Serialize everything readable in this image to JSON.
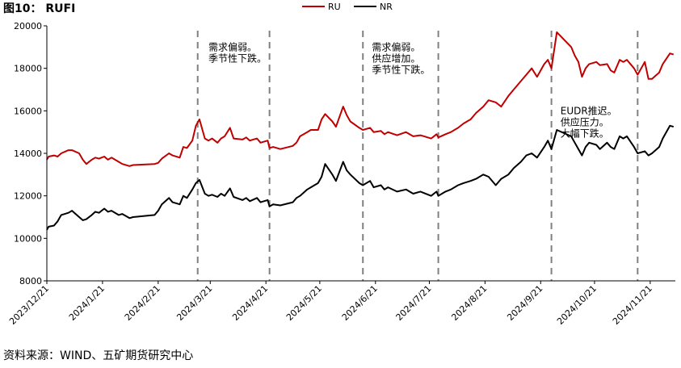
{
  "figure": {
    "title": "图10： RUFI",
    "source": "资料来源：WIND、五矿期货研究中心"
  },
  "chart_data": {
    "type": "line",
    "xlabel": "",
    "ylabel": "",
    "ylim": [
      8000,
      20000
    ],
    "yticks": [
      8000,
      10000,
      12000,
      14000,
      16000,
      18000,
      20000
    ],
    "xlim": [
      "2023-12-21",
      "2024-12-05"
    ],
    "xticks": [
      "2023/12/21",
      "2024/1/21",
      "2024/2/21",
      "2024/3/21",
      "2024/4/21",
      "2024/5/21",
      "2024/6/21",
      "2024/7/21",
      "2024/8/21",
      "2024/9/21",
      "2024/10/21",
      "2024/11/21"
    ],
    "grid": false,
    "legend_position": "top-center",
    "colors": {
      "RU": "#c00000",
      "NR": "#000000",
      "dashed_line": "#808080"
    },
    "dashed_lines": [
      "2024-03-14",
      "2024-04-23",
      "2024-06-14",
      "2024-07-26",
      "2024-09-27",
      "2024-11-14"
    ],
    "annotations": [
      {
        "lines": [
          "需求偏弱。",
          "季节性下跌。"
        ],
        "x": "2024-03-20",
        "y": 18850
      },
      {
        "lines": [
          "需求偏弱。",
          "供应增加。",
          "季节性下跌。"
        ],
        "x": "2024-06-19",
        "y": 18850
      },
      {
        "lines": [
          "EUDR推迟。",
          "供应压力。",
          "大幅下跌。"
        ],
        "x": "2024-10-02",
        "y": 15850
      }
    ],
    "series": [
      {
        "name": "RU",
        "points": [
          [
            "2023-12-21",
            13700
          ],
          [
            "2023-12-22",
            13850
          ],
          [
            "2023-12-25",
            13900
          ],
          [
            "2023-12-27",
            13850
          ],
          [
            "2023-12-29",
            14000
          ],
          [
            "2024-01-02",
            14150
          ],
          [
            "2024-01-04",
            14150
          ],
          [
            "2024-01-08",
            14000
          ],
          [
            "2024-01-10",
            13700
          ],
          [
            "2024-01-12",
            13500
          ],
          [
            "2024-01-15",
            13700
          ],
          [
            "2024-01-17",
            13800
          ],
          [
            "2024-01-19",
            13750
          ],
          [
            "2024-01-22",
            13850
          ],
          [
            "2024-01-24",
            13700
          ],
          [
            "2024-01-26",
            13800
          ],
          [
            "2024-01-30",
            13600
          ],
          [
            "2024-02-01",
            13500
          ],
          [
            "2024-02-05",
            13400
          ],
          [
            "2024-02-07",
            13450
          ],
          [
            "2024-02-19",
            13500
          ],
          [
            "2024-02-21",
            13550
          ],
          [
            "2024-02-23",
            13750
          ],
          [
            "2024-02-27",
            14000
          ],
          [
            "2024-02-29",
            13900
          ],
          [
            "2024-03-04",
            13800
          ],
          [
            "2024-03-06",
            14300
          ],
          [
            "2024-03-08",
            14250
          ],
          [
            "2024-03-11",
            14600
          ],
          [
            "2024-03-13",
            15300
          ],
          [
            "2024-03-15",
            15600
          ],
          [
            "2024-03-18",
            14700
          ],
          [
            "2024-03-20",
            14600
          ],
          [
            "2024-03-22",
            14700
          ],
          [
            "2024-03-25",
            14500
          ],
          [
            "2024-03-27",
            14700
          ],
          [
            "2024-03-29",
            14800
          ],
          [
            "2024-04-01",
            15200
          ],
          [
            "2024-04-03",
            14700
          ],
          [
            "2024-04-08",
            14650
          ],
          [
            "2024-04-10",
            14750
          ],
          [
            "2024-04-12",
            14600
          ],
          [
            "2024-04-16",
            14700
          ],
          [
            "2024-04-18",
            14500
          ],
          [
            "2024-04-22",
            14600
          ],
          [
            "2024-04-23",
            14250
          ],
          [
            "2024-04-25",
            14300
          ],
          [
            "2024-04-29",
            14200
          ],
          [
            "2024-05-06",
            14350
          ],
          [
            "2024-05-08",
            14500
          ],
          [
            "2024-05-10",
            14800
          ],
          [
            "2024-05-14",
            15000
          ],
          [
            "2024-05-16",
            15100
          ],
          [
            "2024-05-20",
            15100
          ],
          [
            "2024-05-22",
            15600
          ],
          [
            "2024-05-24",
            15850
          ],
          [
            "2024-05-28",
            15500
          ],
          [
            "2024-05-30",
            15250
          ],
          [
            "2024-06-03",
            16200
          ],
          [
            "2024-06-05",
            15800
          ],
          [
            "2024-06-07",
            15500
          ],
          [
            "2024-06-12",
            15200
          ],
          [
            "2024-06-14",
            15100
          ],
          [
            "2024-06-18",
            15200
          ],
          [
            "2024-06-20",
            15000
          ],
          [
            "2024-06-24",
            15050
          ],
          [
            "2024-06-26",
            14900
          ],
          [
            "2024-06-28",
            15000
          ],
          [
            "2024-07-03",
            14850
          ],
          [
            "2024-07-08",
            15000
          ],
          [
            "2024-07-12",
            14800
          ],
          [
            "2024-07-16",
            14850
          ],
          [
            "2024-07-22",
            14700
          ],
          [
            "2024-07-25",
            14900
          ],
          [
            "2024-07-26",
            14750
          ],
          [
            "2024-07-30",
            14900
          ],
          [
            "2024-08-02",
            15000
          ],
          [
            "2024-08-06",
            15200
          ],
          [
            "2024-08-09",
            15400
          ],
          [
            "2024-08-13",
            15600
          ],
          [
            "2024-08-16",
            15900
          ],
          [
            "2024-08-20",
            16200
          ],
          [
            "2024-08-23",
            16500
          ],
          [
            "2024-08-27",
            16400
          ],
          [
            "2024-08-30",
            16200
          ],
          [
            "2024-09-03",
            16700
          ],
          [
            "2024-09-06",
            17000
          ],
          [
            "2024-09-10",
            17400
          ],
          [
            "2024-09-13",
            17700
          ],
          [
            "2024-09-16",
            18000
          ],
          [
            "2024-09-19",
            17600
          ],
          [
            "2024-09-23",
            18200
          ],
          [
            "2024-09-25",
            18400
          ],
          [
            "2024-09-27",
            18000
          ],
          [
            "2024-09-30",
            19700
          ],
          [
            "2024-10-08",
            19000
          ],
          [
            "2024-10-10",
            18600
          ],
          [
            "2024-10-12",
            18300
          ],
          [
            "2024-10-14",
            17600
          ],
          [
            "2024-10-16",
            18000
          ],
          [
            "2024-10-18",
            18200
          ],
          [
            "2024-10-22",
            18300
          ],
          [
            "2024-10-24",
            18150
          ],
          [
            "2024-10-28",
            18200
          ],
          [
            "2024-10-30",
            17900
          ],
          [
            "2024-11-01",
            17800
          ],
          [
            "2024-11-04",
            18400
          ],
          [
            "2024-11-06",
            18300
          ],
          [
            "2024-11-08",
            18400
          ],
          [
            "2024-11-12",
            18000
          ],
          [
            "2024-11-14",
            17700
          ],
          [
            "2024-11-18",
            18300
          ],
          [
            "2024-11-20",
            17500
          ],
          [
            "2024-11-22",
            17500
          ],
          [
            "2024-11-26",
            17800
          ],
          [
            "2024-11-28",
            18200
          ],
          [
            "2024-12-02",
            18700
          ],
          [
            "2024-12-04",
            18650
          ]
        ]
      },
      {
        "name": "NR",
        "points": [
          [
            "2023-12-21",
            10400
          ],
          [
            "2023-12-22",
            10550
          ],
          [
            "2023-12-25",
            10600
          ],
          [
            "2023-12-27",
            10800
          ],
          [
            "2023-12-29",
            11100
          ],
          [
            "2024-01-02",
            11200
          ],
          [
            "2024-01-04",
            11300
          ],
          [
            "2024-01-08",
            11000
          ],
          [
            "2024-01-10",
            10850
          ],
          [
            "2024-01-12",
            10900
          ],
          [
            "2024-01-15",
            11100
          ],
          [
            "2024-01-17",
            11250
          ],
          [
            "2024-01-19",
            11200
          ],
          [
            "2024-01-22",
            11400
          ],
          [
            "2024-01-24",
            11250
          ],
          [
            "2024-01-26",
            11300
          ],
          [
            "2024-01-30",
            11100
          ],
          [
            "2024-02-01",
            11150
          ],
          [
            "2024-02-05",
            10950
          ],
          [
            "2024-02-07",
            11000
          ],
          [
            "2024-02-19",
            11100
          ],
          [
            "2024-02-21",
            11300
          ],
          [
            "2024-02-23",
            11600
          ],
          [
            "2024-02-27",
            11900
          ],
          [
            "2024-02-29",
            11700
          ],
          [
            "2024-03-04",
            11600
          ],
          [
            "2024-03-06",
            12000
          ],
          [
            "2024-03-08",
            11900
          ],
          [
            "2024-03-11",
            12300
          ],
          [
            "2024-03-13",
            12600
          ],
          [
            "2024-03-15",
            12750
          ],
          [
            "2024-03-18",
            12100
          ],
          [
            "2024-03-20",
            12000
          ],
          [
            "2024-03-22",
            12050
          ],
          [
            "2024-03-25",
            11950
          ],
          [
            "2024-03-27",
            12100
          ],
          [
            "2024-03-29",
            12000
          ],
          [
            "2024-04-01",
            12350
          ],
          [
            "2024-04-03",
            11950
          ],
          [
            "2024-04-08",
            11800
          ],
          [
            "2024-04-10",
            11900
          ],
          [
            "2024-04-12",
            11750
          ],
          [
            "2024-04-16",
            11900
          ],
          [
            "2024-04-18",
            11700
          ],
          [
            "2024-04-22",
            11800
          ],
          [
            "2024-04-23",
            11500
          ],
          [
            "2024-04-25",
            11600
          ],
          [
            "2024-04-29",
            11550
          ],
          [
            "2024-05-06",
            11700
          ],
          [
            "2024-05-08",
            11900
          ],
          [
            "2024-05-10",
            12000
          ],
          [
            "2024-05-14",
            12300
          ],
          [
            "2024-05-16",
            12400
          ],
          [
            "2024-05-20",
            12600
          ],
          [
            "2024-05-22",
            12900
          ],
          [
            "2024-05-24",
            13500
          ],
          [
            "2024-05-28",
            13000
          ],
          [
            "2024-05-30",
            12700
          ],
          [
            "2024-06-03",
            13600
          ],
          [
            "2024-06-05",
            13200
          ],
          [
            "2024-06-07",
            13000
          ],
          [
            "2024-06-12",
            12600
          ],
          [
            "2024-06-14",
            12500
          ],
          [
            "2024-06-18",
            12700
          ],
          [
            "2024-06-20",
            12400
          ],
          [
            "2024-06-24",
            12500
          ],
          [
            "2024-06-26",
            12300
          ],
          [
            "2024-06-28",
            12400
          ],
          [
            "2024-07-03",
            12200
          ],
          [
            "2024-07-08",
            12300
          ],
          [
            "2024-07-12",
            12100
          ],
          [
            "2024-07-16",
            12200
          ],
          [
            "2024-07-22",
            12000
          ],
          [
            "2024-07-25",
            12200
          ],
          [
            "2024-07-26",
            12000
          ],
          [
            "2024-07-30",
            12200
          ],
          [
            "2024-08-02",
            12300
          ],
          [
            "2024-08-06",
            12500
          ],
          [
            "2024-08-09",
            12600
          ],
          [
            "2024-08-13",
            12700
          ],
          [
            "2024-08-16",
            12800
          ],
          [
            "2024-08-20",
            13000
          ],
          [
            "2024-08-23",
            12900
          ],
          [
            "2024-08-27",
            12500
          ],
          [
            "2024-08-30",
            12800
          ],
          [
            "2024-09-03",
            13000
          ],
          [
            "2024-09-06",
            13300
          ],
          [
            "2024-09-10",
            13600
          ],
          [
            "2024-09-13",
            13900
          ],
          [
            "2024-09-16",
            14000
          ],
          [
            "2024-09-19",
            13800
          ],
          [
            "2024-09-23",
            14300
          ],
          [
            "2024-09-25",
            14600
          ],
          [
            "2024-09-27",
            14200
          ],
          [
            "2024-09-30",
            15100
          ],
          [
            "2024-10-08",
            14800
          ],
          [
            "2024-10-10",
            14500
          ],
          [
            "2024-10-12",
            14200
          ],
          [
            "2024-10-14",
            13900
          ],
          [
            "2024-10-16",
            14300
          ],
          [
            "2024-10-18",
            14500
          ],
          [
            "2024-10-22",
            14400
          ],
          [
            "2024-10-24",
            14200
          ],
          [
            "2024-10-28",
            14500
          ],
          [
            "2024-10-30",
            14300
          ],
          [
            "2024-11-01",
            14200
          ],
          [
            "2024-11-04",
            14800
          ],
          [
            "2024-11-06",
            14700
          ],
          [
            "2024-11-08",
            14800
          ],
          [
            "2024-11-12",
            14300
          ],
          [
            "2024-11-14",
            14000
          ],
          [
            "2024-11-18",
            14100
          ],
          [
            "2024-11-20",
            13900
          ],
          [
            "2024-11-22",
            14000
          ],
          [
            "2024-11-26",
            14300
          ],
          [
            "2024-11-28",
            14700
          ],
          [
            "2024-12-02",
            15300
          ],
          [
            "2024-12-04",
            15250
          ]
        ]
      }
    ]
  }
}
